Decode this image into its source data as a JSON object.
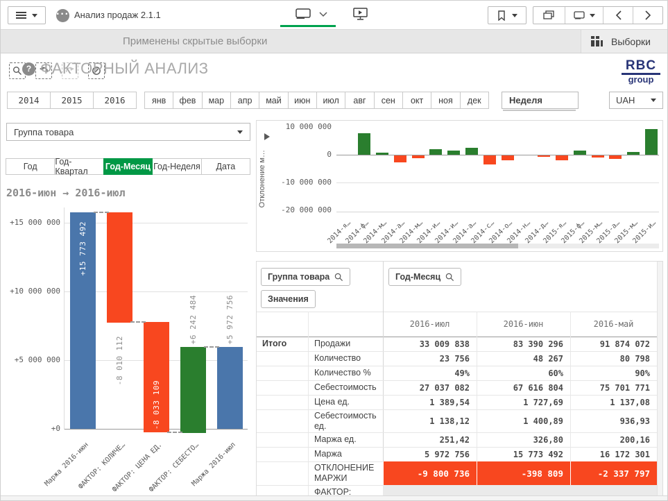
{
  "app": {
    "title": "Анализ продаж 2.1.1",
    "hidden_selections_text": "Применены скрытые выборки",
    "selections_label": "Выборки"
  },
  "sheet": {
    "help_glyph": "?",
    "title": "ФАКТОРНЫЙ АНАЛИЗ",
    "logo_line1": "RBC",
    "logo_line2": "group"
  },
  "filters": {
    "years": [
      "2014",
      "2015",
      "2016"
    ],
    "months": [
      "янв",
      "фев",
      "мар",
      "апр",
      "май",
      "июн",
      "июл",
      "авг",
      "сен",
      "окт",
      "ноя",
      "дек"
    ],
    "week_label": "Неделя",
    "currency_label": "UAH",
    "group_dropdown_label": "Группа товара"
  },
  "period_tabs": {
    "items": [
      "Год",
      "Год-Квартал",
      "Год-Месяц",
      "Год-Неделя",
      "Дата"
    ],
    "active": "Год-Месяц"
  },
  "chart_data": [
    {
      "type": "bar",
      "subtype": "waterfall",
      "title": "2016-июн → 2016-июл",
      "y_ticks": [
        "+15 000 000",
        "+10 000 000",
        "+5 000 000",
        "+0"
      ],
      "ylim": [
        -500000,
        16400000
      ],
      "bars": [
        {
          "category": "Маржа 2016-июн",
          "label": "+15 773 492",
          "value": 15773492,
          "from": 0,
          "to": 15773492,
          "color": "blue",
          "label_style": "inside-top"
        },
        {
          "category": "ФАКТОР: КОЛИЧЕ…",
          "label": "-8 010 112",
          "value": -8010112,
          "from": 15773492,
          "to": 7763380,
          "color": "red",
          "label_style": "below"
        },
        {
          "category": "ФАКТОР: ЦЕНА ЕД.",
          "label": "-8 033 109",
          "value": -8033109,
          "from": 7763380,
          "to": -269729,
          "color": "red",
          "label_style": "inside-bottom"
        },
        {
          "category": "ФАКТОР: СЕБЕСТО…",
          "label": "+6 242 484",
          "value": 6242484,
          "from": -269729,
          "to": 5972756,
          "color": "green",
          "label_style": "above"
        },
        {
          "category": "Маржа 2016-июл",
          "label": "+5 972 756",
          "value": 5972756,
          "from": 0,
          "to": 5972756,
          "color": "blue",
          "label_style": "above"
        }
      ]
    },
    {
      "type": "bar",
      "title": "",
      "y_axis_title": "Отклонение м…",
      "y_ticks": [
        {
          "label": "10 000 000",
          "value": 10000000
        },
        {
          "label": "0",
          "value": 0
        },
        {
          "label": "-10 000 000",
          "value": -10000000
        },
        {
          "label": "-20 000 000",
          "value": -20000000
        }
      ],
      "ylim": [
        -21000000,
        10800000
      ],
      "categories": [
        "2014-я…",
        "2014-ф…",
        "2014-м…",
        "2014-а…",
        "2014-м…",
        "2014-и…",
        "2014-и…",
        "2014-а…",
        "2014-с…",
        "2014-о…",
        "2014-н…",
        "2014-д…",
        "2015-я…",
        "2015-ф…",
        "2015-м…",
        "2015-а…",
        "2015-м…",
        "2015-и…"
      ],
      "values": [
        0,
        7800000,
        800000,
        -2500000,
        -900000,
        2000000,
        1400000,
        2600000,
        -3200000,
        -1800000,
        0,
        -400000,
        -1800000,
        1500000,
        -700000,
        -1300000,
        1000000,
        9300000
      ],
      "legend": "none",
      "has_h_scrollbar": true
    }
  ],
  "pivot": {
    "row_dim_button": "Группа товара",
    "measures_button": "Значения",
    "col_dim_button": "Год-Месяц",
    "total_label": "Итого",
    "columns": [
      "2016-июл",
      "2016-июн",
      "2016-май"
    ],
    "rows": [
      {
        "label": "Продажи",
        "values": [
          "33 009 838",
          "83 390 296",
          "91 874 072"
        ],
        "highlight": "none"
      },
      {
        "label": "Количество",
        "values": [
          "23 756",
          "48 267",
          "80 798"
        ],
        "highlight": "none"
      },
      {
        "label": "Количество %",
        "values": [
          "49%",
          "60%",
          "90%"
        ],
        "highlight": "none"
      },
      {
        "label": "Себестоимость",
        "values": [
          "27 037 082",
          "67 616 804",
          "75 701 771"
        ],
        "highlight": "none"
      },
      {
        "label": "Цена ед.",
        "values": [
          "1 389,54",
          "1 727,69",
          "1 137,08"
        ],
        "highlight": "none"
      },
      {
        "label": "Себестоимость ед.",
        "values": [
          "1 138,12",
          "1 400,89",
          "936,93"
        ],
        "highlight": "none"
      },
      {
        "label": "Маржа ед.",
        "values": [
          "251,42",
          "326,80",
          "200,16"
        ],
        "highlight": "none"
      },
      {
        "label": "Маржа",
        "values": [
          "5 972 756",
          "15 773 492",
          "16 172 301"
        ],
        "highlight": "none"
      },
      {
        "label": "ОТКЛОНЕНИЕ МАРЖИ",
        "values": [
          "-9 800 736",
          "-398 809",
          "-2 337 797"
        ],
        "highlight": "red"
      },
      {
        "label": "ФАКТОР:",
        "values": [
          "",
          "",
          ""
        ],
        "highlight": "gray"
      }
    ]
  },
  "colors": {
    "accent_green": "#009845",
    "underline_green": "#00a24e",
    "bar_blue": "#4a76ab",
    "bar_red": "#f8471f",
    "bar_green": "#2a7e2e",
    "logo_navy": "#283477",
    "red_row_bg": "#f8471f"
  }
}
